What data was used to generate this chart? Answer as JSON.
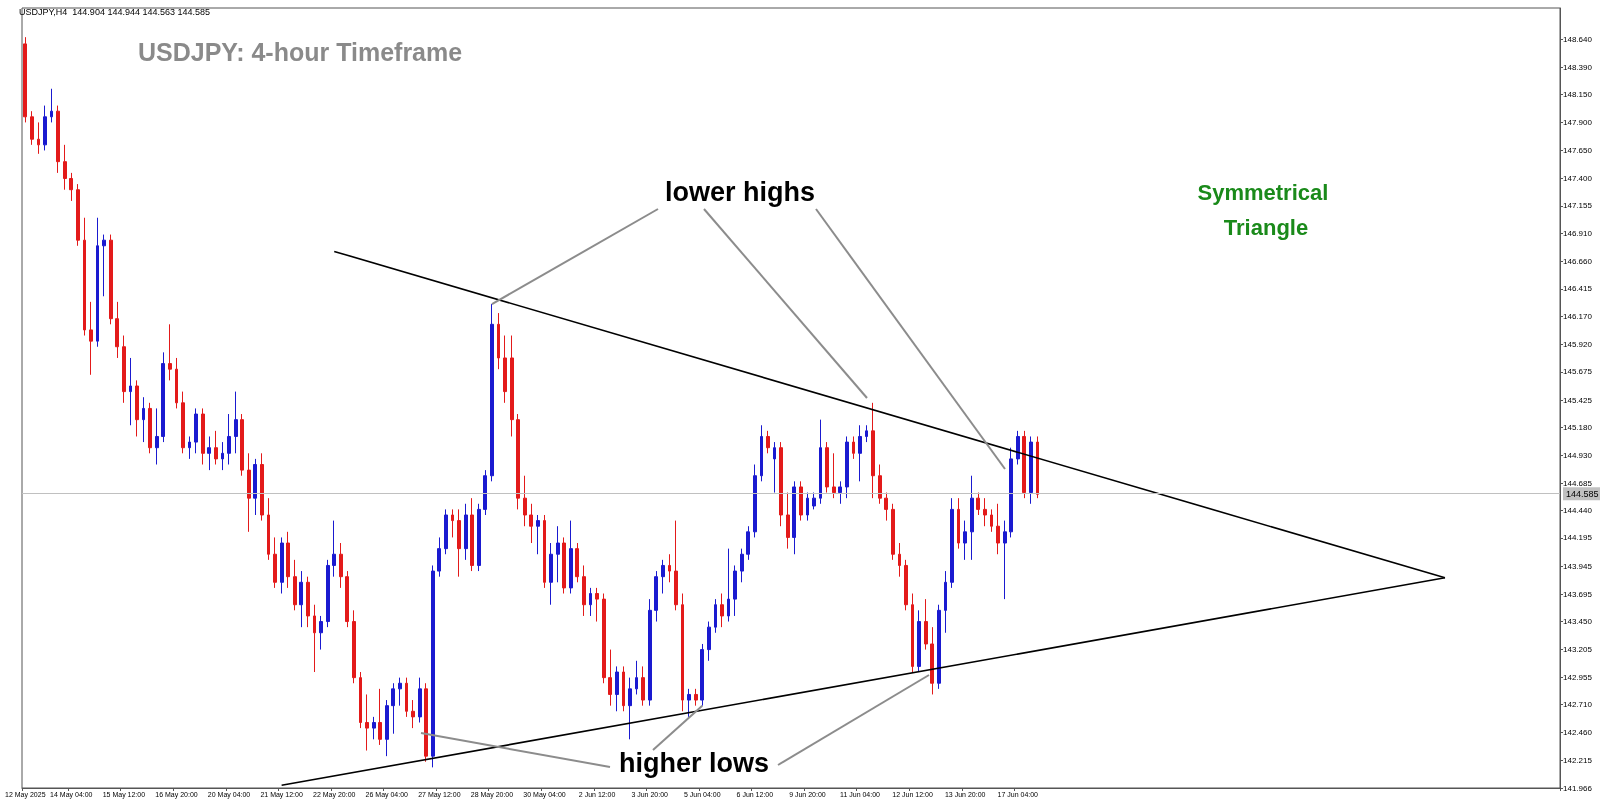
{
  "chart_data": {
    "type": "candlestick",
    "title": "USDJPY: 4-hour Timeframe",
    "subtitle": "USDJPY,H4  144.904 144.944 144.563 144.585",
    "annotations": [
      {
        "text": "lower highs",
        "x": "28 May 20:00",
        "y": 146.28
      },
      {
        "text": "higher lows",
        "x": "5 Jun 04:00",
        "y": 142.7
      },
      "Symmetrical Triangle"
    ],
    "categories": [
      "12 May 2025",
      null,
      null,
      null,
      null,
      null,
      null,
      "14 May 04:00",
      null,
      null,
      null,
      null,
      null,
      null,
      null,
      "15 May 12:00",
      null,
      null,
      null,
      null,
      null,
      null,
      null,
      "16 May 20:00",
      null,
      null,
      null,
      null,
      null,
      null,
      null,
      "20 May 04:00",
      null,
      null,
      null,
      null,
      null,
      null,
      null,
      "21 May 12:00",
      null,
      null,
      null,
      null,
      null,
      null,
      null,
      "22 May 20:00",
      null,
      null,
      null,
      null,
      null,
      null,
      null,
      "26 May 04:00",
      null,
      null,
      null,
      null,
      null,
      null,
      null,
      "27 May 12:00",
      null,
      null,
      null,
      null,
      null,
      null,
      null,
      "28 May 20:00",
      null,
      null,
      null,
      null,
      null,
      null,
      null,
      "30 May 04:00",
      null,
      null,
      null,
      null,
      null,
      null,
      null,
      "2 Jun 12:00",
      null,
      null,
      null,
      null,
      null,
      null,
      null,
      "3 Jun 20:00",
      null,
      null,
      null,
      null,
      null,
      null,
      null,
      "5 Jun 04:00",
      null,
      null,
      null,
      null,
      null,
      null,
      null,
      "6 Jun 12:00",
      null,
      null,
      null,
      null,
      null,
      null,
      null,
      "9 Jun 20:00",
      null,
      null,
      null,
      null,
      null,
      null,
      null,
      "11 Jun 04:00",
      null,
      null,
      null,
      null,
      null,
      null,
      null,
      "12 Jun 12:00",
      null,
      null,
      null,
      null,
      null,
      null,
      null,
      "13 Jun 20:00",
      null,
      null,
      null,
      null,
      null,
      null,
      null,
      "17 Jun 04:00",
      null,
      null,
      null,
      null,
      null,
      null,
      null,
      null,
      null,
      null,
      null,
      null,
      null,
      null,
      null,
      null,
      null,
      null,
      null,
      null,
      null,
      null,
      null,
      null,
      null,
      null,
      null,
      null,
      null,
      null,
      null,
      null,
      null,
      null,
      null,
      null,
      null,
      null,
      null,
      null,
      null,
      null,
      null,
      null,
      null,
      null,
      null,
      null,
      null,
      null,
      null,
      null,
      null,
      null,
      null,
      null,
      null,
      null,
      null,
      null,
      null,
      null,
      null,
      null,
      null,
      null,
      null,
      null,
      null,
      null,
      null,
      null,
      null,
      null,
      null,
      null,
      null,
      null,
      null,
      null,
      null,
      null
    ],
    "ylim": [
      141.966,
      148.92
    ],
    "yticks": [
      {
        "value": 141.966,
        "label": "141.966"
      },
      {
        "value": 142.215,
        "label": "142.215"
      },
      {
        "value": 142.46,
        "label": "142.460"
      },
      {
        "value": 142.71,
        "label": "142.710"
      },
      {
        "value": 142.955,
        "label": "142.955"
      },
      {
        "value": 143.205,
        "label": "143.205"
      },
      {
        "value": 143.45,
        "label": "143.450"
      },
      {
        "value": 143.695,
        "label": "143.695"
      },
      {
        "value": 143.945,
        "label": "143.945"
      },
      {
        "value": 144.195,
        "label": "144.195"
      },
      {
        "value": 144.44,
        "label": "144.440"
      },
      {
        "value": 144.685,
        "label": "144.685"
      },
      {
        "value": 144.93,
        "label": "144.930"
      },
      {
        "value": 145.18,
        "label": "145.180"
      },
      {
        "value": 145.425,
        "label": "145.425"
      },
      {
        "value": 145.675,
        "label": "145.675"
      },
      {
        "value": 145.92,
        "label": "145.920"
      },
      {
        "value": 146.17,
        "label": "146.170"
      },
      {
        "value": 146.415,
        "label": "146.415"
      },
      {
        "value": 146.66,
        "label": "146.660"
      },
      {
        "value": 146.91,
        "label": "146.910"
      },
      {
        "value": 147.155,
        "label": "147.155"
      },
      {
        "value": 147.4,
        "label": "147.400"
      },
      {
        "value": 147.65,
        "label": "147.650"
      },
      {
        "value": 147.9,
        "label": "147.900"
      },
      {
        "value": 148.15,
        "label": "148.150"
      },
      {
        "value": 148.39,
        "label": "148.390"
      },
      {
        "value": 148.64,
        "label": "148.640"
      }
    ],
    "ref_lines": [
      {
        "axis": "y",
        "value": 144.585,
        "label": "144.585",
        "color": "#c0c0c0"
      }
    ],
    "series": [
      {
        "ohlc": [
          [
            148.6,
            148.66,
            147.9,
            147.95
          ],
          [
            147.95,
            148.0,
            147.7,
            147.75
          ],
          [
            147.75,
            147.9,
            147.62,
            147.7
          ],
          [
            147.7,
            148.05,
            147.65,
            147.95
          ],
          [
            147.95,
            148.2,
            147.9,
            148.0
          ],
          [
            148.0,
            148.05,
            147.45,
            147.55
          ],
          [
            147.55,
            147.7,
            147.3,
            147.4
          ],
          [
            147.4,
            147.45,
            147.2,
            147.3
          ],
          [
            147.3,
            147.35,
            146.8,
            146.85
          ],
          [
            146.85,
            147.05,
            146.0,
            146.05
          ],
          [
            146.05,
            146.3,
            145.65,
            145.95
          ],
          [
            145.95,
            147.05,
            145.9,
            146.8
          ],
          [
            146.8,
            146.9,
            146.35,
            146.85
          ],
          [
            146.85,
            146.9,
            146.1,
            146.15
          ],
          [
            146.15,
            146.3,
            145.8,
            145.9
          ],
          [
            145.9,
            146.0,
            145.4,
            145.5
          ],
          [
            145.5,
            145.8,
            145.2,
            145.55
          ],
          [
            145.55,
            145.6,
            145.1,
            145.25
          ],
          [
            145.25,
            145.45,
            145.05,
            145.35
          ],
          [
            145.35,
            145.4,
            144.95,
            145.0
          ],
          [
            145.0,
            145.35,
            144.85,
            145.1
          ],
          [
            145.1,
            145.85,
            145.05,
            145.75
          ],
          [
            145.75,
            146.1,
            145.6,
            145.7
          ],
          [
            145.7,
            145.8,
            145.35,
            145.4
          ],
          [
            145.4,
            145.5,
            144.95,
            145.0
          ],
          [
            145.0,
            145.1,
            144.9,
            145.05
          ],
          [
            145.05,
            145.35,
            144.95,
            145.3
          ],
          [
            145.3,
            145.35,
            144.85,
            144.95
          ],
          [
            144.95,
            145.1,
            144.8,
            145.0
          ],
          [
            145.0,
            145.15,
            144.85,
            144.9
          ],
          [
            144.9,
            145.05,
            144.8,
            144.95
          ],
          [
            144.95,
            145.3,
            144.85,
            145.1
          ],
          [
            145.1,
            145.5,
            144.95,
            145.25
          ],
          [
            145.25,
            145.3,
            144.75,
            144.8
          ],
          [
            144.8,
            144.95,
            144.25,
            144.55
          ],
          [
            144.55,
            144.9,
            144.4,
            144.85
          ],
          [
            144.85,
            144.95,
            144.35,
            144.4
          ],
          [
            144.4,
            144.55,
            144.0,
            144.05
          ],
          [
            144.05,
            144.2,
            143.75,
            143.8
          ],
          [
            143.8,
            144.2,
            143.7,
            144.15
          ],
          [
            144.15,
            144.25,
            143.75,
            143.85
          ],
          [
            143.85,
            144.0,
            143.55,
            143.6
          ],
          [
            143.6,
            143.9,
            143.4,
            143.8
          ],
          [
            143.8,
            143.85,
            143.4,
            143.5
          ],
          [
            143.5,
            143.6,
            143.0,
            143.35
          ],
          [
            143.35,
            143.5,
            143.2,
            143.45
          ],
          [
            143.45,
            144.0,
            143.4,
            143.95
          ],
          [
            143.95,
            144.35,
            143.85,
            144.05
          ],
          [
            144.05,
            144.15,
            143.75,
            143.85
          ],
          [
            143.85,
            143.9,
            143.4,
            143.45
          ],
          [
            143.45,
            143.55,
            142.9,
            142.95
          ],
          [
            142.95,
            143.0,
            142.5,
            142.55
          ],
          [
            142.55,
            142.8,
            142.3,
            142.5
          ],
          [
            142.5,
            142.6,
            142.4,
            142.55
          ],
          [
            142.55,
            142.85,
            142.35,
            142.4
          ],
          [
            142.4,
            142.75,
            142.25,
            142.7
          ],
          [
            142.7,
            142.9,
            142.45,
            142.85
          ],
          [
            142.85,
            142.95,
            142.7,
            142.9
          ],
          [
            142.9,
            142.95,
            142.6,
            142.65
          ],
          [
            142.65,
            142.75,
            142.5,
            142.6
          ],
          [
            142.6,
            142.95,
            142.55,
            142.85
          ],
          [
            142.85,
            142.9,
            142.2,
            142.25
          ],
          [
            142.25,
            143.95,
            142.15,
            143.9
          ],
          [
            143.9,
            144.2,
            143.85,
            144.1
          ],
          [
            144.1,
            144.45,
            144.05,
            144.4
          ],
          [
            144.4,
            144.45,
            144.2,
            144.35
          ],
          [
            144.35,
            144.45,
            143.85,
            144.1
          ],
          [
            144.1,
            144.5,
            144.0,
            144.4
          ],
          [
            144.4,
            144.55,
            143.9,
            143.95
          ],
          [
            143.95,
            144.5,
            143.9,
            144.45
          ],
          [
            144.45,
            144.8,
            144.4,
            144.75
          ],
          [
            144.75,
            146.28,
            144.7,
            146.1
          ],
          [
            146.1,
            146.2,
            145.7,
            145.8
          ],
          [
            145.8,
            146.0,
            145.4,
            145.5
          ],
          [
            145.8,
            146.0,
            145.1,
            145.25
          ],
          [
            145.25,
            145.3,
            144.45,
            144.55
          ],
          [
            144.55,
            144.75,
            144.3,
            144.4
          ],
          [
            144.4,
            144.5,
            144.15,
            144.3
          ],
          [
            144.3,
            144.4,
            144.05,
            144.35
          ],
          [
            144.35,
            144.4,
            143.75,
            143.8
          ],
          [
            143.8,
            144.15,
            143.6,
            144.05
          ],
          [
            144.05,
            144.3,
            143.8,
            144.15
          ],
          [
            144.15,
            144.2,
            143.7,
            143.75
          ],
          [
            143.75,
            144.35,
            143.7,
            144.1
          ],
          [
            144.1,
            144.15,
            143.8,
            143.85
          ],
          [
            143.85,
            143.95,
            143.5,
            143.6
          ],
          [
            143.6,
            143.75,
            143.5,
            143.7
          ],
          [
            143.7,
            143.75,
            143.45,
            143.65
          ],
          [
            143.65,
            143.7,
            142.9,
            142.95
          ],
          [
            142.95,
            143.2,
            142.7,
            142.8
          ],
          [
            142.8,
            143.05,
            142.65,
            143.0
          ],
          [
            143.0,
            143.05,
            142.65,
            142.7
          ],
          [
            142.7,
            142.95,
            142.4,
            142.85
          ],
          [
            142.85,
            143.1,
            142.8,
            142.95
          ],
          [
            142.95,
            143.05,
            142.7,
            142.75
          ],
          [
            142.75,
            143.65,
            142.7,
            143.55
          ],
          [
            143.55,
            143.9,
            143.45,
            143.85
          ],
          [
            143.85,
            144.0,
            143.7,
            143.95
          ],
          [
            143.95,
            144.05,
            143.8,
            143.9
          ],
          [
            143.9,
            144.35,
            143.55,
            143.6
          ],
          [
            143.6,
            143.7,
            142.65,
            142.75
          ],
          [
            142.75,
            142.85,
            142.6,
            142.8
          ],
          [
            142.8,
            142.85,
            142.7,
            142.75
          ],
          [
            142.75,
            143.25,
            142.7,
            143.2
          ],
          [
            143.2,
            143.45,
            143.1,
            143.4
          ],
          [
            143.4,
            143.65,
            143.35,
            143.6
          ],
          [
            143.6,
            143.7,
            143.4,
            143.5
          ],
          [
            143.5,
            144.1,
            143.45,
            143.65
          ],
          [
            143.65,
            143.95,
            143.5,
            143.9
          ],
          [
            143.9,
            144.1,
            143.8,
            144.05
          ],
          [
            144.05,
            144.3,
            144.0,
            144.25
          ],
          [
            144.25,
            144.85,
            144.2,
            144.75
          ],
          [
            144.75,
            145.2,
            144.7,
            145.1
          ],
          [
            145.1,
            145.15,
            144.95,
            145.0
          ],
          [
            144.9,
            145.05,
            144.6,
            145.0
          ],
          [
            145.0,
            145.05,
            144.3,
            144.4
          ],
          [
            144.4,
            144.6,
            144.1,
            144.2
          ],
          [
            144.2,
            144.7,
            144.05,
            144.65
          ],
          [
            144.65,
            144.7,
            144.35,
            144.4
          ],
          [
            144.4,
            144.6,
            144.35,
            144.55
          ],
          [
            144.48,
            144.6,
            144.45,
            144.55
          ],
          [
            144.55,
            145.25,
            144.5,
            145.0
          ],
          [
            145.0,
            145.05,
            144.6,
            144.65
          ],
          [
            144.65,
            144.95,
            144.55,
            144.6
          ],
          [
            144.6,
            144.7,
            144.5,
            144.65
          ],
          [
            144.65,
            145.1,
            144.55,
            145.05
          ],
          [
            145.05,
            145.1,
            144.9,
            144.95
          ],
          [
            144.95,
            145.2,
            144.7,
            145.1
          ],
          [
            145.1,
            145.2,
            145.05,
            145.15
          ],
          [
            145.15,
            145.4,
            144.55,
            144.75
          ],
          [
            144.75,
            144.85,
            144.5,
            144.55
          ],
          [
            144.55,
            144.6,
            144.35,
            144.45
          ],
          [
            144.45,
            144.5,
            144.0,
            144.05
          ],
          [
            144.05,
            144.15,
            143.85,
            143.95
          ],
          [
            143.95,
            144.0,
            143.55,
            143.6
          ],
          [
            143.6,
            143.7,
            143.0,
            143.05
          ],
          [
            143.05,
            143.55,
            143.0,
            143.45
          ],
          [
            143.45,
            143.65,
            143.2,
            143.25
          ],
          [
            143.25,
            143.4,
            142.8,
            142.9
          ],
          [
            142.9,
            143.6,
            142.85,
            143.55
          ],
          [
            143.55,
            143.9,
            143.35,
            143.8
          ],
          [
            143.8,
            144.55,
            143.75,
            144.45
          ],
          [
            144.45,
            144.55,
            144.1,
            144.15
          ],
          [
            144.15,
            144.35,
            144.0,
            144.25
          ],
          [
            144.25,
            144.75,
            144.0,
            144.55
          ],
          [
            144.55,
            144.6,
            144.4,
            144.45
          ],
          [
            144.45,
            144.55,
            144.3,
            144.4
          ],
          [
            144.4,
            144.45,
            144.25,
            144.3
          ],
          [
            144.3,
            144.5,
            144.05,
            144.15
          ],
          [
            144.15,
            144.35,
            143.65,
            144.25
          ],
          [
            144.25,
            145.0,
            144.2,
            144.9
          ],
          [
            144.9,
            145.15,
            144.85,
            145.1
          ],
          [
            145.1,
            145.15,
            144.55,
            144.6
          ],
          [
            144.6,
            145.1,
            144.5,
            145.05
          ],
          [
            145.05,
            145.1,
            144.55,
            144.585
          ],
          null,
          null,
          null,
          null,
          null,
          null,
          null,
          null,
          null,
          null,
          null,
          null,
          null,
          null,
          null,
          null,
          null,
          null,
          null,
          null,
          null,
          null,
          null,
          null,
          null,
          null,
          null,
          null,
          null,
          null,
          null,
          null,
          null,
          null,
          null,
          null,
          null,
          null,
          null,
          null,
          null,
          null,
          null,
          null,
          null,
          null,
          null,
          null,
          null,
          null,
          null,
          null,
          null,
          null,
          null,
          null,
          null,
          null,
          null,
          null,
          null,
          null,
          null,
          null,
          null,
          null,
          null,
          null,
          null,
          null,
          null,
          null,
          null,
          null,
          null,
          null,
          null,
          null,
          null
        ],
        "colors": [
          "#e31a1a",
          "#e31a1a",
          "#e31a1a",
          "#1a1ad0",
          "#1a1ad0",
          "#e31a1a",
          "#e31a1a",
          "#e31a1a",
          "#e31a1a",
          "#e31a1a",
          "#e31a1a",
          "#1a1ad0",
          "#1a1ad0",
          "#e31a1a",
          "#e31a1a",
          "#e31a1a",
          "#1a1ad0",
          "#e31a1a",
          "#1a1ad0",
          "#e31a1a",
          "#1a1ad0",
          "#1a1ad0",
          "#e31a1a",
          "#e31a1a",
          "#e31a1a",
          "#1a1ad0",
          "#1a1ad0",
          "#e31a1a",
          "#1a1ad0",
          "#e31a1a",
          "#1a1ad0",
          "#1a1ad0",
          "#1a1ad0",
          "#e31a1a",
          "#e31a1a",
          "#1a1ad0",
          "#e31a1a",
          "#e31a1a",
          "#e31a1a",
          "#1a1ad0",
          "#e31a1a",
          "#e31a1a",
          "#1a1ad0",
          "#e31a1a",
          "#e31a1a",
          "#1a1ad0",
          "#1a1ad0",
          "#1a1ad0",
          "#e31a1a",
          "#e31a1a",
          "#e31a1a",
          "#e31a1a",
          "#e31a1a",
          "#1a1ad0",
          "#e31a1a",
          "#1a1ad0",
          "#1a1ad0",
          "#1a1ad0",
          "#e31a1a",
          "#e31a1a",
          "#1a1ad0",
          "#e31a1a",
          "#1a1ad0",
          "#1a1ad0",
          "#1a1ad0",
          "#e31a1a",
          "#e31a1a",
          "#1a1ad0",
          "#e31a1a",
          "#1a1ad0",
          "#1a1ad0",
          "#1a1ad0",
          "#e31a1a",
          "#e31a1a",
          "#e31a1a",
          "#e31a1a",
          "#e31a1a",
          "#e31a1a",
          "#1a1ad0",
          "#e31a1a",
          "#1a1ad0",
          "#1a1ad0",
          "#e31a1a",
          "#1a1ad0",
          "#e31a1a",
          "#e31a1a",
          "#1a1ad0",
          "#e31a1a",
          "#e31a1a",
          "#e31a1a",
          "#1a1ad0",
          "#e31a1a",
          "#1a1ad0",
          "#1a1ad0",
          "#e31a1a",
          "#1a1ad0",
          "#1a1ad0",
          "#1a1ad0",
          "#e31a1a",
          "#e31a1a",
          "#e31a1a",
          "#1a1ad0",
          "#e31a1a",
          "#1a1ad0",
          "#1a1ad0",
          "#1a1ad0",
          "#e31a1a",
          "#1a1ad0",
          "#1a1ad0",
          "#1a1ad0",
          "#1a1ad0",
          "#1a1ad0",
          "#1a1ad0",
          "#e31a1a",
          "#1a1ad0",
          "#e31a1a",
          "#e31a1a",
          "#1a1ad0",
          "#e31a1a",
          "#1a1ad0",
          "#1a1ad0",
          "#1a1ad0",
          "#e31a1a",
          "#e31a1a",
          "#1a1ad0",
          "#1a1ad0",
          "#e31a1a",
          "#1a1ad0",
          "#1a1ad0",
          "#e31a1a",
          "#e31a1a",
          "#e31a1a",
          "#e31a1a",
          "#e31a1a",
          "#e31a1a",
          "#e31a1a",
          "#1a1ad0",
          "#e31a1a",
          "#e31a1a",
          "#1a1ad0",
          "#1a1ad0",
          "#1a1ad0",
          "#e31a1a",
          "#1a1ad0",
          "#1a1ad0",
          "#e31a1a",
          "#e31a1a",
          "#e31a1a",
          "#e31a1a",
          "#1a1ad0",
          "#1a1ad0",
          "#1a1ad0",
          "#e31a1a",
          "#1a1ad0",
          "#e31a1a",
          null,
          null,
          null,
          null,
          null,
          null,
          null,
          null,
          null,
          null,
          null,
          null,
          null,
          null,
          null,
          null,
          null,
          null,
          null,
          null,
          null,
          null,
          null,
          null,
          null,
          null,
          null,
          null,
          null,
          null,
          null,
          null,
          null,
          null,
          null,
          null,
          null,
          null,
          null,
          null,
          null,
          null,
          null,
          null,
          null,
          null,
          null,
          null,
          null,
          null,
          null,
          null,
          null,
          null,
          null,
          null,
          null,
          null,
          null,
          null,
          null,
          null,
          null,
          null,
          null,
          null,
          null,
          null,
          null,
          null,
          null,
          null,
          null,
          null,
          null,
          null,
          null,
          null,
          null
        ]
      },
      {
        "type": "line",
        "color": "#000000",
        "values": [
          null,
          null,
          null,
          null,
          null,
          null,
          null,
          null,
          null,
          null,
          null,
          null,
          null,
          null,
          null,
          null,
          null,
          null,
          null,
          null,
          null,
          null,
          null,
          null,
          null,
          null,
          null,
          null,
          null,
          null,
          null,
          null,
          null,
          null,
          null,
          null,
          null,
          null,
          null,
          null,
          null,
          null,
          null,
          null,
          null,
          null,
          null,
          146.75,
          null,
          null,
          null,
          null,
          null,
          null,
          null,
          null,
          null,
          null,
          null,
          null,
          null,
          null,
          null,
          null,
          null,
          null,
          null,
          null,
          null,
          null,
          null,
          null,
          null,
          null,
          null,
          null,
          null,
          null,
          null,
          null,
          null,
          null,
          null,
          null,
          null,
          null,
          null,
          null,
          null,
          null,
          null,
          null,
          null,
          null,
          null,
          null,
          null,
          null,
          null,
          null,
          null,
          null,
          null,
          null,
          null,
          null,
          null,
          null,
          null,
          null,
          null,
          null,
          null,
          null,
          null,
          null,
          null,
          null,
          null,
          null,
          null,
          null,
          null,
          null,
          null,
          null,
          null,
          null,
          null,
          null,
          null,
          null,
          null,
          null,
          null,
          null,
          null,
          null,
          null,
          null,
          null,
          null,
          null,
          null,
          null,
          null,
          null,
          null,
          null,
          null,
          null,
          null,
          null,
          null,
          null,
          null,
          null,
          null,
          null,
          null,
          null,
          null,
          null,
          null,
          null,
          null,
          null,
          null,
          null,
          null,
          null,
          null,
          null,
          null,
          null,
          null,
          null,
          null,
          null,
          null,
          null,
          null,
          null,
          null,
          null,
          null,
          null,
          null,
          null,
          null,
          null,
          null,
          null,
          null,
          null,
          null,
          null,
          null,
          null,
          null,
          null,
          null,
          null,
          null,
          null,
          null,
          null,
          null,
          null,
          null,
          null,
          null,
          null,
          null,
          null,
          null,
          143.84,
          null,
          null,
          null,
          null,
          null,
          null,
          null,
          null,
          null,
          null,
          null,
          null,
          null,
          null,
          null,
          null,
          null
        ]
      },
      {
        "type": "line",
        "color": "#000000",
        "values": [
          null,
          null,
          null,
          null,
          null,
          null,
          null,
          null,
          null,
          null,
          null,
          null,
          null,
          null,
          null,
          null,
          null,
          null,
          null,
          null,
          null,
          null,
          null,
          null,
          null,
          null,
          null,
          null,
          null,
          null,
          null,
          null,
          null,
          null,
          null,
          null,
          null,
          null,
          null,
          141.99,
          null,
          null,
          null,
          null,
          null,
          null,
          null,
          null,
          null,
          null,
          null,
          null,
          null,
          null,
          null,
          null,
          null,
          null,
          null,
          null,
          null,
          null,
          null,
          null,
          null,
          null,
          null,
          null,
          null,
          null,
          null,
          null,
          null,
          null,
          null,
          null,
          null,
          null,
          null,
          null,
          null,
          null,
          null,
          null,
          null,
          null,
          null,
          null,
          null,
          null,
          null,
          null,
          null,
          null,
          null,
          null,
          null,
          null,
          null,
          null,
          null,
          null,
          null,
          null,
          null,
          null,
          null,
          null,
          null,
          null,
          null,
          null,
          null,
          null,
          null,
          null,
          null,
          null,
          null,
          null,
          null,
          null,
          null,
          null,
          null,
          null,
          null,
          null,
          null,
          null,
          null,
          null,
          null,
          null,
          null,
          null,
          null,
          null,
          null,
          null,
          null,
          null,
          null,
          null,
          null,
          null,
          null,
          null,
          null,
          null,
          null,
          null,
          null,
          null,
          null,
          null,
          null,
          null,
          null,
          null,
          null,
          null,
          null,
          null,
          null,
          null,
          null,
          null,
          null,
          null,
          null,
          null,
          null,
          null,
          null,
          null,
          null,
          null,
          null,
          null,
          null,
          null,
          null,
          null,
          null,
          null,
          null,
          null,
          null,
          null,
          null,
          null,
          null,
          null,
          null,
          null,
          null,
          null,
          null,
          null,
          null,
          null,
          null,
          null,
          null,
          null,
          null,
          null,
          null,
          null,
          null,
          null,
          null,
          null,
          null,
          null,
          143.84,
          null,
          null,
          null,
          null,
          null,
          null,
          null,
          null,
          null,
          null,
          null,
          null,
          null,
          null,
          null,
          null,
          null
        ]
      }
    ]
  }
}
